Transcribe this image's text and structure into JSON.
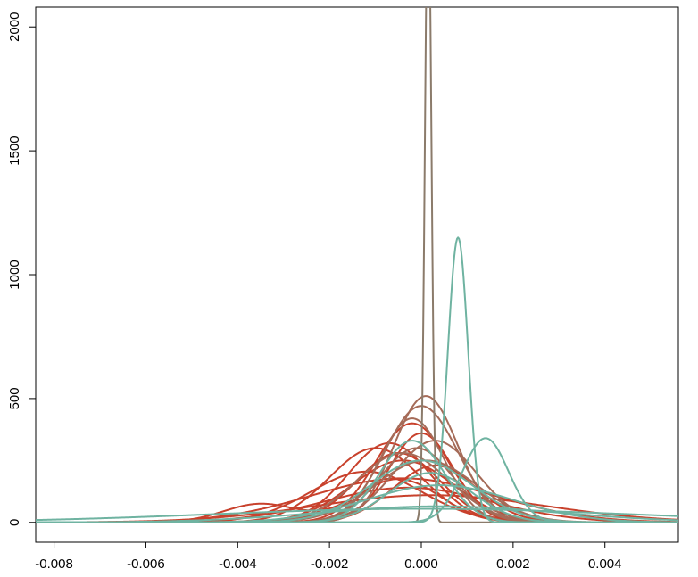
{
  "chart_data": {
    "type": "line",
    "title": "",
    "xlabel": "",
    "ylabel": "",
    "xlim": [
      -0.0084,
      0.0056
    ],
    "ylim": [
      -80,
      2080
    ],
    "x_ticks": [
      -0.008,
      -0.006,
      -0.004,
      -0.002,
      0.0,
      0.002,
      0.004
    ],
    "x_tick_labels": [
      "-0.008",
      "-0.006",
      "-0.004",
      "-0.002",
      "0.000",
      "0.002",
      "0.004"
    ],
    "y_ticks": [
      0,
      500,
      1000,
      1500,
      2000
    ],
    "y_tick_labels": [
      "0",
      "500",
      "1000",
      "1500",
      "2000"
    ],
    "grid": false,
    "legend": "none",
    "colors": {
      "red": "#c8412c",
      "brown": "#a56b58",
      "teal": "#6fb3a1",
      "taupe": "#8b7b6b"
    },
    "series": [
      {
        "color": "#c8412c",
        "components": [
          {
            "mu": -0.0004,
            "sd": 0.002,
            "amp": 178
          }
        ]
      },
      {
        "color": "#c8412c",
        "components": [
          {
            "mu": -0.0035,
            "sd": 0.0008,
            "amp": 75
          },
          {
            "mu": -0.0005,
            "sd": 0.0009,
            "amp": 175
          }
        ]
      },
      {
        "color": "#c8412c",
        "components": [
          {
            "mu": -0.0007,
            "sd": 0.0009,
            "amp": 320
          }
        ]
      },
      {
        "color": "#c8412c",
        "components": [
          {
            "mu": -0.0002,
            "sd": 0.0008,
            "amp": 400
          }
        ]
      },
      {
        "color": "#c8412c",
        "components": [
          {
            "mu": -0.0003,
            "sd": 0.0018,
            "amp": 140
          }
        ]
      },
      {
        "color": "#c8412c",
        "components": [
          {
            "mu": -0.001,
            "sd": 0.001,
            "amp": 300
          }
        ]
      },
      {
        "color": "#c8412c",
        "components": [
          {
            "mu": 0.0,
            "sd": 0.0007,
            "amp": 360
          }
        ]
      },
      {
        "color": "#c8412c",
        "components": [
          {
            "mu": -0.0012,
            "sd": 0.0012,
            "amp": 205
          }
        ]
      },
      {
        "color": "#c8412c",
        "components": [
          {
            "mu": 0.0002,
            "sd": 0.0025,
            "amp": 110
          }
        ]
      },
      {
        "color": "#c8412c",
        "components": [
          {
            "mu": -0.0005,
            "sd": 0.0009,
            "amp": 280
          }
        ]
      },
      {
        "color": "#c8412c",
        "components": [
          {
            "mu": -0.0004,
            "sd": 0.0011,
            "amp": 250
          }
        ]
      },
      {
        "color": "#c8412c",
        "components": [
          {
            "mu": 0.0003,
            "sd": 0.0009,
            "amp": 230
          }
        ]
      },
      {
        "color": "#a56b58",
        "components": [
          {
            "mu": 0.0001,
            "sd": 0.0007,
            "amp": 510
          }
        ]
      },
      {
        "color": "#a56b58",
        "components": [
          {
            "mu": 0.0,
            "sd": 0.0008,
            "amp": 470
          }
        ]
      },
      {
        "color": "#a56b58",
        "components": [
          {
            "mu": -0.0002,
            "sd": 0.0007,
            "amp": 420
          }
        ]
      },
      {
        "color": "#a56b58",
        "components": [
          {
            "mu": 0.0003,
            "sd": 0.0009,
            "amp": 330
          }
        ]
      },
      {
        "color": "#a56b58",
        "components": [
          {
            "mu": -0.0004,
            "sd": 0.001,
            "amp": 280
          }
        ]
      },
      {
        "color": "#a56b58",
        "components": [
          {
            "mu": 0.0001,
            "sd": 0.0011,
            "amp": 250
          }
        ]
      },
      {
        "color": "#a56b58",
        "components": [
          {
            "mu": -0.0001,
            "sd": 0.0008,
            "amp": 300
          }
        ]
      },
      {
        "color": "#8b7b6b",
        "components": [
          {
            "mu": 0.00015,
            "sd": 7e-05,
            "amp": 2600
          }
        ]
      },
      {
        "color": "#6fb3a1",
        "components": [
          {
            "mu": 0.0008,
            "sd": 0.00022,
            "amp": 1150
          }
        ]
      },
      {
        "color": "#6fb3a1",
        "components": [
          {
            "mu": 0.0014,
            "sd": 0.0005,
            "amp": 340
          }
        ]
      },
      {
        "color": "#6fb3a1",
        "components": [
          {
            "mu": 0.0,
            "sd": 0.0011,
            "amp": 250
          }
        ]
      },
      {
        "color": "#6fb3a1",
        "components": [
          {
            "mu": 0.0004,
            "sd": 0.0026,
            "amp": 65
          }
        ]
      },
      {
        "color": "#6fb3a1",
        "components": [
          {
            "mu": 0.0,
            "sd": 0.0045,
            "amp": 55
          }
        ]
      },
      {
        "color": "#6fb3a1",
        "components": [
          {
            "mu": 0.0004,
            "sd": 0.0016,
            "amp": 150
          }
        ]
      },
      {
        "color": "#6fb3a1",
        "components": [
          {
            "mu": -0.0002,
            "sd": 0.0007,
            "amp": 330
          }
        ]
      },
      {
        "color": "#6fb3a1",
        "components": [
          {
            "mu": 0.0002,
            "sd": 0.0009,
            "amp": 200
          }
        ]
      }
    ]
  }
}
